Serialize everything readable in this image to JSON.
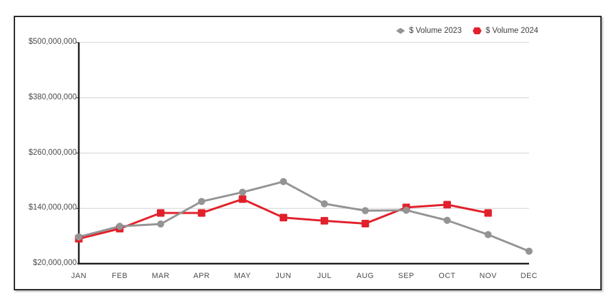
{
  "chart_data": {
    "type": "line",
    "title": "",
    "xlabel": "",
    "ylabel": "",
    "categories": [
      "JAN",
      "FEB",
      "MAR",
      "APR",
      "MAY",
      "JUN",
      "JUL",
      "AUG",
      "SEP",
      "OCT",
      "NOV",
      "DEC"
    ],
    "series": [
      {
        "name": "$ Volume 2023",
        "color": "#949494",
        "marker": "circle",
        "values": [
          78000000,
          101000000,
          106000000,
          155000000,
          175000000,
          198000000,
          150000000,
          135000000,
          136000000,
          114000000,
          83000000,
          47000000
        ]
      },
      {
        "name": "$ Volume 2024",
        "color": "#e2202b",
        "marker": "square",
        "values": [
          74000000,
          96000000,
          130000000,
          130000000,
          160000000,
          120000000,
          113000000,
          107000000,
          142000000,
          148000000,
          130000000,
          null
        ]
      }
    ],
    "y_axis": {
      "min": 20000000,
      "max": 500000000,
      "tick_interval": 120000000,
      "tick_labels": [
        "$20,000,000",
        "$140,000,000",
        "$260,000,000",
        "$380,000,000",
        "$500,000,000"
      ]
    },
    "grid": "horizontal",
    "legend_position": "top-right",
    "colors": {
      "grid_line": "#cfd2d4",
      "axis_line": "#1f1f1f",
      "label_text": "#4a4a4a"
    }
  }
}
